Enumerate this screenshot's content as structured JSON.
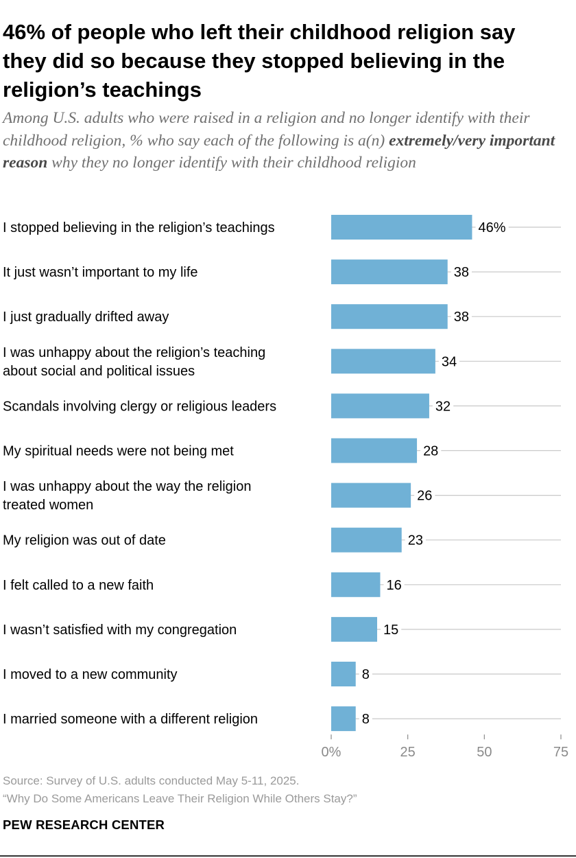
{
  "chart_data": {
    "type": "bar",
    "orientation": "horizontal",
    "title": "46% of people who left their childhood religion say they did so because they stopped believing in the religion’s teachings",
    "subtitle_part1": "Among U.S. adults who were raised in a religion and no longer identify with their childhood religion, % who say each of the following is a(n) ",
    "subtitle_bold": "extremely/very important reason",
    "subtitle_part2": " why they no longer identify with their childhood religion",
    "categories": [
      "I stopped believing in the religion’s teachings",
      "It just wasn’t important to my life",
      "I just gradually drifted away",
      "I was unhappy about the religion’s teaching about social and political issues",
      "Scandals involving clergy or religious leaders",
      "My spiritual needs were not being met",
      "I was unhappy about the way the religion treated women",
      "My religion was out of date",
      "I felt called to a new faith",
      "I wasn’t satisfied with my congregation",
      "I moved to a new community",
      "I married someone with a different religion"
    ],
    "category_lines": [
      [
        "I stopped believing in the religion’s teachings"
      ],
      [
        "It just wasn’t important to my life"
      ],
      [
        "I just gradually drifted away"
      ],
      [
        "I was unhappy about the religion’s teaching",
        "about social and political issues"
      ],
      [
        "Scandals involving clergy or religious leaders"
      ],
      [
        "My spiritual needs were not being met"
      ],
      [
        "I was unhappy about the way the religion",
        "treated women"
      ],
      [
        "My religion was out of date"
      ],
      [
        "I felt called to a new faith"
      ],
      [
        "I wasn’t satisfied with my congregation"
      ],
      [
        "I moved to a new community"
      ],
      [
        "I married someone with a different religion"
      ]
    ],
    "values": [
      46,
      38,
      38,
      34,
      32,
      28,
      26,
      23,
      16,
      15,
      8,
      8
    ],
    "value_labels": [
      "46%",
      "38",
      "38",
      "34",
      "32",
      "28",
      "26",
      "23",
      "16",
      "15",
      "8",
      "8"
    ],
    "xlim": [
      0,
      75
    ],
    "xticks": [
      0,
      25,
      50,
      75
    ],
    "xtick_labels": [
      "0%",
      "25",
      "50",
      "75"
    ],
    "bar_color": "#70b1d6",
    "guide_color": "#c8c8c8",
    "grid": false
  },
  "source": {
    "line1": "Source: Survey of U.S. adults conducted May 5-11, 2025.",
    "line2": "“Why Do Some Americans Leave Their Religion While Others Stay?”"
  },
  "brand": "PEW RESEARCH CENTER"
}
